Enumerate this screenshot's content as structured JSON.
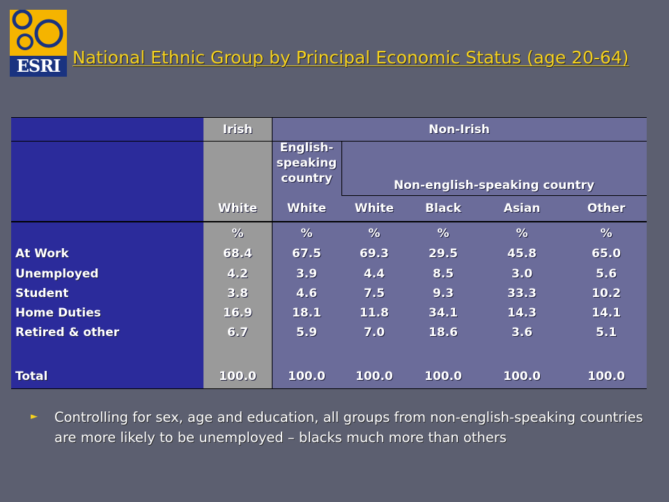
{
  "logo": {
    "text": "ESRI",
    "accent": "#f5b400",
    "navy": "#1a3380"
  },
  "title": "National Ethnic Group by Principal Economic Status (age 20-64)",
  "table": {
    "header_top": {
      "irish": "Irish",
      "non_irish": "Non-Irish"
    },
    "header_sub": {
      "english": "English-speaking country",
      "non_english": "Non-english-speaking country"
    },
    "header_race": [
      "White",
      "White",
      "White",
      "Black",
      "Asian",
      "Other"
    ],
    "unit_row": [
      "%",
      "%",
      "%",
      "%",
      "%",
      "%"
    ],
    "rows": [
      {
        "label": "At Work",
        "values": [
          "68.4",
          "67.5",
          "69.3",
          "29.5",
          "45.8",
          "65.0"
        ]
      },
      {
        "label": "Unemployed",
        "values": [
          "4.2",
          "3.9",
          "4.4",
          "8.5",
          "3.0",
          "5.6"
        ]
      },
      {
        "label": "Student",
        "values": [
          "3.8",
          "4.6",
          "7.5",
          "9.3",
          "33.3",
          "10.2"
        ]
      },
      {
        "label": "Home Duties",
        "values": [
          "16.9",
          "18.1",
          "11.8",
          "34.1",
          "14.3",
          "14.1"
        ]
      },
      {
        "label": "Retired & other",
        "values": [
          "6.7",
          "5.9",
          "7.0",
          "18.6",
          "3.6",
          "5.1"
        ]
      }
    ],
    "total": {
      "label": "Total",
      "values": [
        "100.0",
        "100.0",
        "100.0",
        "100.0",
        "100.0",
        "100.0"
      ]
    }
  },
  "bullet": "Controlling for sex, age and education, all groups from non-english-speaking countries are more likely to be unemployed – blacks much more than others",
  "colors": {
    "background": "#5c5f70",
    "title": "#f6d21e",
    "label_col": "#2b2b9b",
    "irish_col": "#9a9a9a",
    "table_bg": "#6b6c9a"
  }
}
